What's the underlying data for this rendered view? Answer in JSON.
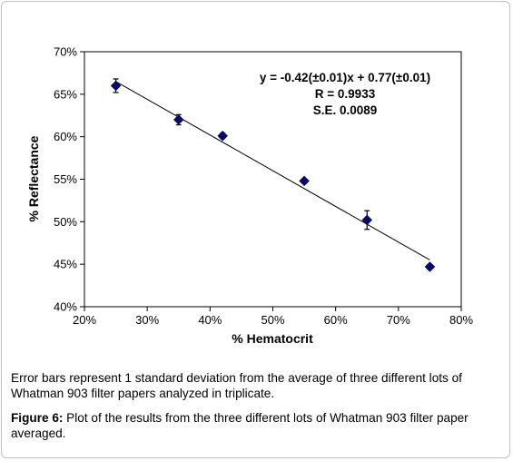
{
  "chart_data": {
    "type": "scatter",
    "x": [
      25,
      35,
      42,
      55,
      65,
      75
    ],
    "y": [
      66.0,
      62.0,
      60.1,
      54.8,
      50.2,
      44.7
    ],
    "y_error": [
      0.8,
      0.6,
      0.3,
      0.2,
      1.1,
      0.2
    ],
    "xlabel": "% Hematocrit",
    "ylabel": "% Reflectance",
    "xlim": [
      20,
      80
    ],
    "ylim": [
      40,
      70
    ],
    "xticks": [
      20,
      30,
      40,
      50,
      60,
      70,
      80
    ],
    "yticks": [
      40,
      45,
      50,
      55,
      60,
      65,
      70
    ],
    "xtick_labels": [
      "20%",
      "30%",
      "40%",
      "50%",
      "60%",
      "70%",
      "80%"
    ],
    "ytick_labels": [
      "40%",
      "45%",
      "50%",
      "55%",
      "60%",
      "65%",
      "70%"
    ],
    "trendline": {
      "slope": -0.42,
      "intercept": 0.77,
      "x_range": [
        25,
        75
      ]
    },
    "annotations": [
      "y = -0.42(±0.01)x + 0.77(±0.01)",
      "R = 0.9933",
      "S.E. 0.0089"
    ],
    "marker": "diamond",
    "marker_color": "#0a0a6e",
    "grid": false
  },
  "note_text": "Error bars represent 1 standard deviation from the average of three different lots of Whatman 903 filter papers analyzed in triplicate.",
  "caption": {
    "label": "Figure 6:",
    "text": " Plot of the results from the three different lots of Whatman 903 filter paper averaged."
  }
}
